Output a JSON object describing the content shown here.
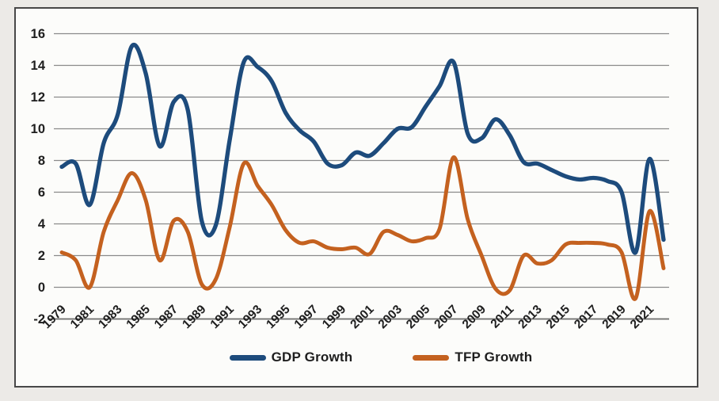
{
  "chart": {
    "colors": {
      "gdp_line": "#1d4b7c",
      "tfp_line": "#c4611f",
      "gridline": "#8a8a8a",
      "axis_line": "#6b6b6b",
      "frame_border": "#484848",
      "text": "#1e1e1e",
      "plot_background": "#fcfcfa",
      "outer_background": "#eceae7"
    }
  },
  "chart_data": {
    "type": "line",
    "title": "",
    "xlabel": "",
    "ylabel": "",
    "grid": true,
    "smoothed": true,
    "legend_position": "bottom",
    "ylim": [
      -2,
      16
    ],
    "y_ticks": [
      16,
      14,
      12,
      10,
      8,
      6,
      4,
      2,
      0,
      -2
    ],
    "x_tick_labels": [
      "1979",
      "1981",
      "1983",
      "1985",
      "1987",
      "1989",
      "1991",
      "1993",
      "1995",
      "1997",
      "1999",
      "2001",
      "2003",
      "2005",
      "2007",
      "2009",
      "2011",
      "2013",
      "2015",
      "2017",
      "2019",
      "2021"
    ],
    "x": [
      1979,
      1980,
      1981,
      1982,
      1983,
      1984,
      1985,
      1986,
      1987,
      1988,
      1989,
      1990,
      1991,
      1992,
      1993,
      1994,
      1995,
      1996,
      1997,
      1998,
      1999,
      2000,
      2001,
      2002,
      2003,
      2004,
      2005,
      2006,
      2007,
      2008,
      2009,
      2010,
      2011,
      2012,
      2013,
      2014,
      2015,
      2016,
      2017,
      2018,
      2019,
      2020,
      2021,
      2022
    ],
    "series": [
      {
        "name": "GDP Growth",
        "color": "#1d4b7c",
        "values": [
          7.6,
          7.8,
          5.2,
          9.1,
          10.9,
          15.2,
          13.5,
          8.9,
          11.7,
          11.2,
          4.2,
          3.9,
          9.3,
          14.2,
          13.9,
          13.0,
          11.0,
          9.9,
          9.2,
          7.8,
          7.7,
          8.5,
          8.3,
          9.1,
          10.0,
          10.1,
          11.4,
          12.7,
          14.2,
          9.7,
          9.4,
          10.6,
          9.6,
          7.9,
          7.8,
          7.4,
          7.0,
          6.8,
          6.9,
          6.7,
          6.0,
          2.2,
          8.1,
          3.0
        ]
      },
      {
        "name": "TFP Growth",
        "color": "#c4611f",
        "values": [
          2.2,
          1.7,
          0.0,
          3.5,
          5.5,
          7.2,
          5.5,
          1.7,
          4.2,
          3.5,
          0.2,
          0.5,
          3.8,
          7.8,
          6.4,
          5.2,
          3.6,
          2.8,
          2.9,
          2.5,
          2.4,
          2.5,
          2.1,
          3.5,
          3.3,
          2.9,
          3.1,
          3.7,
          8.2,
          4.3,
          2.0,
          -0.1,
          -0.2,
          2.0,
          1.5,
          1.7,
          2.7,
          2.8,
          2.8,
          2.7,
          2.2,
          -0.7,
          4.8,
          1.2
        ]
      }
    ]
  }
}
